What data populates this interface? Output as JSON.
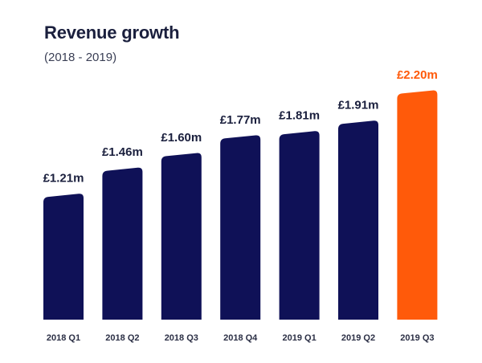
{
  "header": {
    "title": "Revenue growth",
    "subtitle": "(2018 - 2019)"
  },
  "colors": {
    "bar": "#0f1157",
    "highlight_bar": "#ff5a0a",
    "label": "#1a1f3d",
    "highlight_label": "#ff5a0a"
  },
  "chart_data": {
    "type": "bar",
    "title": "Revenue growth",
    "subtitle": "(2018 - 2019)",
    "categories": [
      "2018 Q1",
      "2018 Q2",
      "2018 Q3",
      "2018 Q4",
      "2019 Q1",
      "2019 Q2",
      "2019 Q3"
    ],
    "values": [
      1.21,
      1.46,
      1.6,
      1.77,
      1.81,
      1.91,
      2.2
    ],
    "data_labels": [
      "£1.21m",
      "£1.46m",
      "£1.60m",
      "£1.77m",
      "£1.81m",
      "£1.91m",
      "£2.20m"
    ],
    "highlight_index": 6,
    "unit": "£m",
    "xlabel": "",
    "ylabel": "",
    "ylim": [
      0,
      2.2
    ],
    "grid": false,
    "legend": "none"
  }
}
